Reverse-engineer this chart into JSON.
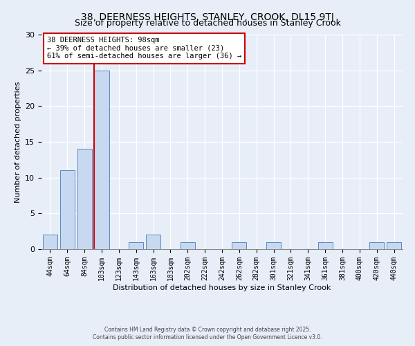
{
  "title": "38, DEERNESS HEIGHTS, STANLEY, CROOK, DL15 9TJ",
  "subtitle": "Size of property relative to detached houses in Stanley Crook",
  "xlabel": "Distribution of detached houses by size in Stanley Crook",
  "ylabel": "Number of detached properties",
  "bins": [
    "44sqm",
    "64sqm",
    "84sqm",
    "103sqm",
    "123sqm",
    "143sqm",
    "163sqm",
    "183sqm",
    "202sqm",
    "222sqm",
    "242sqm",
    "262sqm",
    "282sqm",
    "301sqm",
    "321sqm",
    "341sqm",
    "361sqm",
    "381sqm",
    "400sqm",
    "420sqm",
    "440sqm"
  ],
  "counts": [
    2,
    11,
    14,
    25,
    0,
    1,
    2,
    0,
    1,
    0,
    0,
    1,
    0,
    1,
    0,
    0,
    1,
    0,
    0,
    1,
    1
  ],
  "bar_color": "#c6d9f0",
  "bar_edge_color": "#5b87c5",
  "highlight_line_color": "#cc0000",
  "annotation_title": "38 DEERNESS HEIGHTS: 98sqm",
  "annotation_line1": "← 39% of detached houses are smaller (23)",
  "annotation_line2": "61% of semi-detached houses are larger (36) →",
  "annotation_box_color": "#ffffff",
  "annotation_box_edge": "#cc0000",
  "ylim": [
    0,
    30
  ],
  "yticks": [
    0,
    5,
    10,
    15,
    20,
    25,
    30
  ],
  "footer1": "Contains HM Land Registry data © Crown copyright and database right 2025.",
  "footer2": "Contains public sector information licensed under the Open Government Licence v3.0.",
  "bg_color": "#e8eef8",
  "grid_color": "#ffffff",
  "title_fontsize": 10,
  "subtitle_fontsize": 9,
  "tick_fontsize": 7,
  "ylabel_fontsize": 8,
  "xlabel_fontsize": 8,
  "ann_fontsize": 7.5,
  "footer_fontsize": 5.5
}
